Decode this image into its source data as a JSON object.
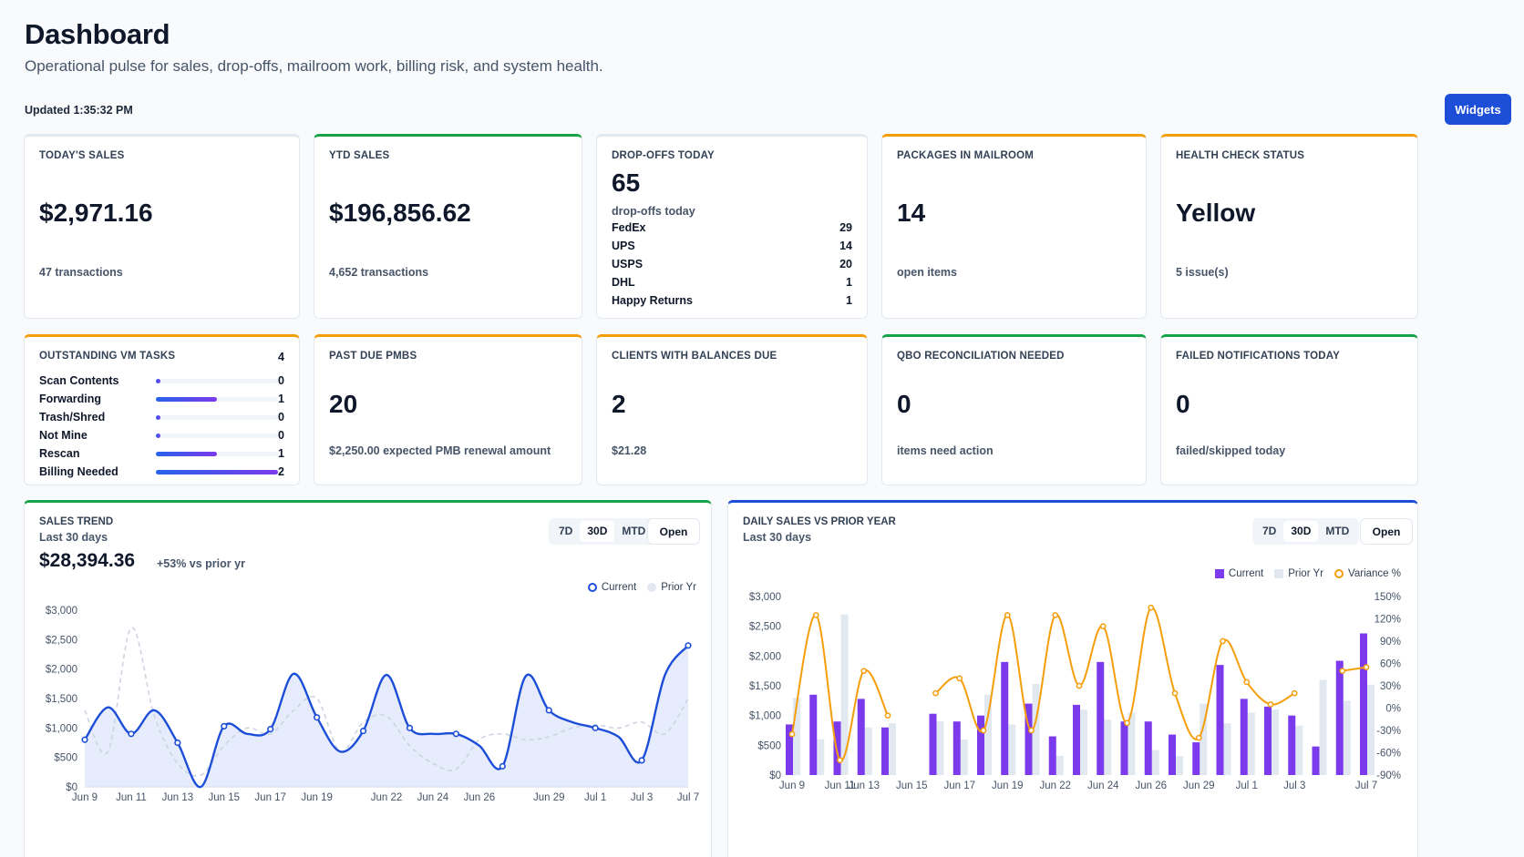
{
  "header": {
    "title": "Dashboard",
    "subtitle": "Operational pulse for sales, drop-offs, mailroom work, billing risk, and system health.",
    "updated": "Updated 1:35:32 PM",
    "widgets_label": "Widgets"
  },
  "cards": {
    "todays_sales": {
      "label": "TODAY'S SALES",
      "value": "$2,971.16",
      "sub": "47 transactions"
    },
    "ytd_sales": {
      "label": "YTD SALES",
      "value": "$196,856.62",
      "sub": "4,652 transactions"
    },
    "dropoffs": {
      "label": "DROP-OFFS TODAY",
      "value": "65",
      "sub": "drop-offs today",
      "carriers": [
        {
          "name": "FedEx",
          "count": "29"
        },
        {
          "name": "UPS",
          "count": "14"
        },
        {
          "name": "USPS",
          "count": "20"
        },
        {
          "name": "DHL",
          "count": "1"
        },
        {
          "name": "Happy Returns",
          "count": "1"
        }
      ]
    },
    "packages": {
      "label": "PACKAGES IN MAILROOM",
      "value": "14",
      "sub": "open items"
    },
    "health": {
      "label": "HEALTH CHECK STATUS",
      "value": "Yellow",
      "sub": "5 issue(s)"
    },
    "vm_tasks": {
      "label": "OUTSTANDING VM TASKS",
      "count": "4",
      "items": [
        {
          "name": "Scan Contents",
          "count": "0",
          "fraction": 0
        },
        {
          "name": "Forwarding",
          "count": "1",
          "fraction": 0.5
        },
        {
          "name": "Trash/Shred",
          "count": "0",
          "fraction": 0
        },
        {
          "name": "Not Mine",
          "count": "0",
          "fraction": 0
        },
        {
          "name": "Rescan",
          "count": "1",
          "fraction": 0.5
        },
        {
          "name": "Billing Needed",
          "count": "2",
          "fraction": 1
        }
      ]
    },
    "past_due": {
      "label": "PAST DUE PMBS",
      "value": "20",
      "sub": "$2,250.00 expected PMB renewal amount"
    },
    "balances": {
      "label": "CLIENTS WITH BALANCES DUE",
      "value": "2",
      "sub": "$21.28"
    },
    "qbo": {
      "label": "QBO RECONCILIATION NEEDED",
      "value": "0",
      "sub": "items need action"
    },
    "failed": {
      "label": "FAILED NOTIFICATIONS TODAY",
      "value": "0",
      "sub": "failed/skipped today"
    }
  },
  "sales_trend": {
    "title": "SALES TREND",
    "subtitle": "Last 30 days",
    "total": "$28,394.36",
    "delta": "+53% vs prior yr",
    "ranges": [
      "7D",
      "30D",
      "MTD"
    ],
    "active_range": "30D",
    "open_label": "Open",
    "colors": {
      "current": "#1d4ed8",
      "prior": "#cbd5e1",
      "fill": "#dbe4fb"
    }
  },
  "daily_sales": {
    "title": "DAILY SALES VS PRIOR YEAR",
    "subtitle": "Last 30 days",
    "ranges": [
      "7D",
      "30D",
      "MTD"
    ],
    "active_range": "30D",
    "open_label": "Open",
    "colors": {
      "current": "#7c3aed",
      "prior": "#e2e8f0",
      "variance": "#f59e0b"
    }
  },
  "chart_data": [
    {
      "type": "line",
      "title": "SALES TREND",
      "x": [
        "Jun 9",
        "Jun 10",
        "Jun 11",
        "Jun 12",
        "Jun 13",
        "Jun 14",
        "Jun 15",
        "Jun 16",
        "Jun 17",
        "Jun 18",
        "Jun 19",
        "Jun 20",
        "Jun 21",
        "Jun 22",
        "Jun 23",
        "Jun 24",
        "Jun 25",
        "Jun 26",
        "Jun 27",
        "Jun 28",
        "Jun 29",
        "Jun 30",
        "Jul 1",
        "Jul 2",
        "Jul 3",
        "Jul 4",
        "Jul 5",
        "Jul 6",
        "Jul 7"
      ],
      "tick_labels": [
        "Jun 9",
        "Jun 11",
        "Jun 13",
        "Jun 15",
        "Jun 17",
        "Jun 19",
        "Jun 22",
        "Jun 24",
        "Jun 26",
        "Jun 29",
        "Jul 1",
        "Jul 3",
        "Jul 7"
      ],
      "series": [
        {
          "name": "Current",
          "values": [
            800,
            1350,
            900,
            1300,
            750,
            0,
            1030,
            900,
            980,
            1920,
            1180,
            600,
            950,
            1900,
            1000,
            900,
            900,
            700,
            350,
            1880,
            1300,
            1100,
            1000,
            850,
            450,
            1900,
            2400,
            null,
            null
          ]
        },
        {
          "name": "Prior Yr",
          "values": [
            1300,
            600,
            2700,
            1200,
            400,
            200,
            700,
            1000,
            900,
            1300,
            1500,
            600,
            1100,
            1200,
            700,
            400,
            300,
            800,
            900,
            800,
            850,
            1000,
            1050,
            1000,
            1100,
            900,
            1500,
            null,
            null
          ]
        }
      ],
      "ylim": [
        0,
        3000
      ],
      "yticks": [
        "$0",
        "$500",
        "$1,000",
        "$1,500",
        "$2,000",
        "$2,500",
        "$3,000"
      ],
      "legend": "top-right"
    },
    {
      "type": "bar",
      "title": "DAILY SALES VS PRIOR YEAR",
      "categories": [
        "Jun 9",
        "Jun 10",
        "Jun 11",
        "Jun 12",
        "Jun 13",
        "Jun 14",
        "Jun 15",
        "Jun 16",
        "Jun 17",
        "Jun 18",
        "Jun 19",
        "Jun 20",
        "Jun 21",
        "Jun 22",
        "Jun 23",
        "Jun 24",
        "Jun 25",
        "Jun 26",
        "Jun 27",
        "Jun 28",
        "Jun 29",
        "Jun 30",
        "Jul 1",
        "Jul 2",
        "Jul 3",
        "Jul 4",
        "Jul 5",
        "Jul 6",
        "Jul 7"
      ],
      "tick_labels": [
        "Jun 9",
        "Jun 11",
        "Jun 13",
        "Jun 15",
        "Jun 17",
        "Jun 19",
        "Jun 22",
        "Jun 24",
        "Jun 26",
        "Jun 29",
        "Jul 1",
        "Jul 3",
        "Jul 7"
      ],
      "series": [
        {
          "name": "Current",
          "values": [
            850,
            1350,
            900,
            1280,
            800,
            0,
            1030,
            900,
            1000,
            1900,
            1200,
            650,
            1180,
            1900,
            900,
            900,
            680,
            550,
            1850,
            1280,
            1150,
            1000,
            480,
            1920,
            2380,
            null,
            null,
            null,
            null
          ]
        },
        {
          "name": "Prior Yr",
          "values": [
            1300,
            600,
            2700,
            800,
            870,
            0,
            900,
            600,
            1350,
            850,
            1530,
            320,
            1100,
            930,
            1050,
            420,
            320,
            1200,
            870,
            1050,
            1100,
            830,
            1600,
            1250,
            1520,
            null,
            null,
            null,
            null
          ]
        },
        {
          "name": "Variance %",
          "axis": "right",
          "values": [
            -35,
            125,
            -70,
            50,
            -10,
            null,
            20,
            40,
            -30,
            125,
            -30,
            125,
            30,
            110,
            -20,
            135,
            20,
            -40,
            90,
            35,
            5,
            20,
            null,
            50,
            55,
            null,
            null,
            null,
            null
          ]
        }
      ],
      "ylim": [
        0,
        3000
      ],
      "y2lim": [
        -90,
        150
      ],
      "yticks": [
        "$0",
        "$500",
        "$1,000",
        "$1,500",
        "$2,000",
        "$2,500",
        "$3,000"
      ],
      "y2ticks": [
        "-90%",
        "-60%",
        "-30%",
        "0%",
        "30%",
        "60%",
        "90%",
        "120%",
        "150%"
      ],
      "legend": "top-right"
    }
  ]
}
